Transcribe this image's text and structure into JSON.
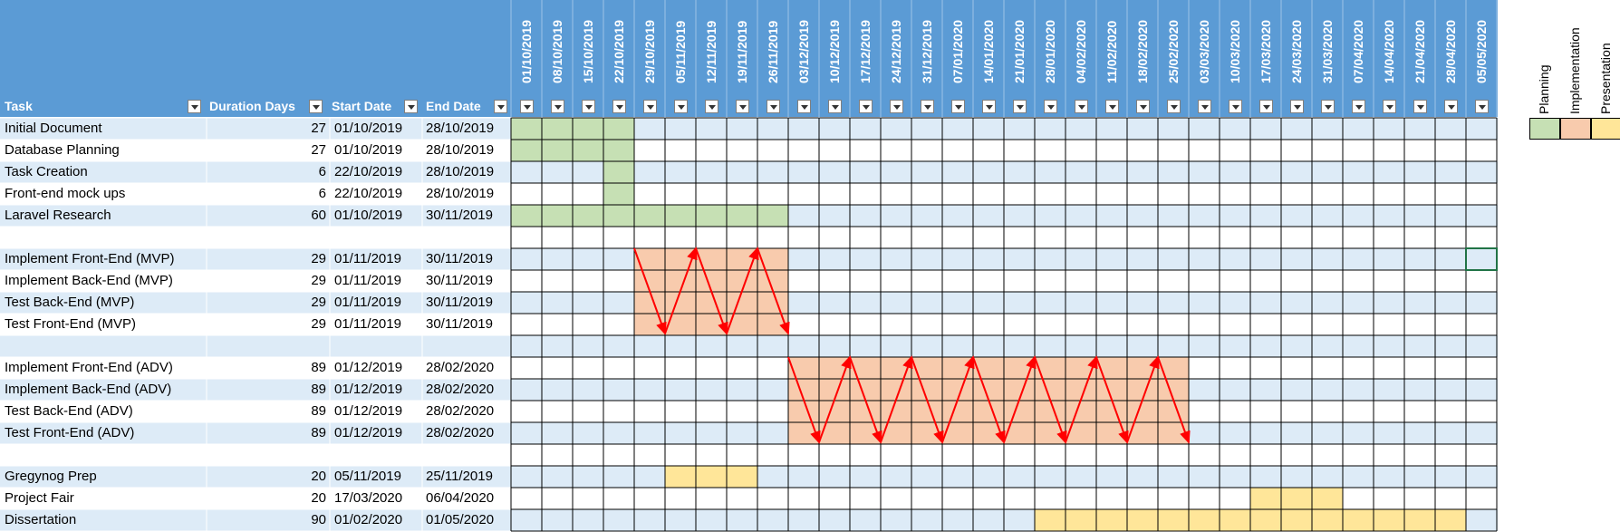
{
  "columns": {
    "task": "Task",
    "duration": "Duration Days",
    "start": "Start Date",
    "end": "End Date"
  },
  "weeks": [
    "01/10/2019",
    "08/10/2019",
    "15/10/2019",
    "22/10/2019",
    "29/10/2019",
    "05/11/2019",
    "12/11/2019",
    "19/11/2019",
    "26/11/2019",
    "03/12/2019",
    "10/12/2019",
    "17/12/2019",
    "24/12/2019",
    "31/12/2019",
    "07/01/2020",
    "14/01/2020",
    "21/01/2020",
    "28/01/2020",
    "04/02/2020",
    "11/02/2020",
    "18/02/2020",
    "25/02/2020",
    "03/03/2020",
    "10/03/2020",
    "17/03/2020",
    "24/03/2020",
    "31/03/2020",
    "07/04/2020",
    "14/04/2020",
    "21/04/2020",
    "28/04/2020",
    "05/05/2020"
  ],
  "rows": [
    {
      "task": "Initial Document",
      "duration": "27",
      "start": "01/10/2019",
      "end": "28/10/2019",
      "category": "planning",
      "bar": [
        0,
        4
      ]
    },
    {
      "task": "Database Planning",
      "duration": "27",
      "start": "01/10/2019",
      "end": "28/10/2019",
      "category": "planning",
      "bar": [
        0,
        4
      ]
    },
    {
      "task": "Task Creation",
      "duration": "6",
      "start": "22/10/2019",
      "end": "28/10/2019",
      "category": "planning",
      "bar": [
        3,
        4
      ]
    },
    {
      "task": "Front-end mock ups",
      "duration": "6",
      "start": "22/10/2019",
      "end": "28/10/2019",
      "category": "planning",
      "bar": [
        3,
        4
      ]
    },
    {
      "task": "Laravel Research",
      "duration": "60",
      "start": "01/10/2019",
      "end": "30/11/2019",
      "category": "planning",
      "bar": [
        0,
        9
      ]
    },
    {
      "task": "",
      "duration": "",
      "start": "",
      "end": "",
      "category": "",
      "bar": null
    },
    {
      "task": "Implement Front-End (MVP)",
      "duration": "29",
      "start": "01/11/2019",
      "end": "30/11/2019",
      "category": "implementation",
      "bar": [
        4,
        9
      ]
    },
    {
      "task": "Implement Back-End (MVP)",
      "duration": "29",
      "start": "01/11/2019",
      "end": "30/11/2019",
      "category": "implementation",
      "bar": [
        4,
        9
      ]
    },
    {
      "task": "Test Back-End (MVP)",
      "duration": "29",
      "start": "01/11/2019",
      "end": "30/11/2019",
      "category": "implementation",
      "bar": [
        4,
        9
      ]
    },
    {
      "task": "Test Front-End (MVP)",
      "duration": "29",
      "start": "01/11/2019",
      "end": "30/11/2019",
      "category": "implementation",
      "bar": [
        4,
        9
      ]
    },
    {
      "task": "",
      "duration": "",
      "start": "",
      "end": "",
      "category": "",
      "bar": null
    },
    {
      "task": "Implement Front-End (ADV)",
      "duration": "89",
      "start": "01/12/2019",
      "end": "28/02/2020",
      "category": "implementation",
      "bar": [
        9,
        22
      ]
    },
    {
      "task": "Implement Back-End (ADV)",
      "duration": "89",
      "start": "01/12/2019",
      "end": "28/02/2020",
      "category": "implementation",
      "bar": [
        9,
        22
      ]
    },
    {
      "task": "Test Back-End (ADV)",
      "duration": "89",
      "start": "01/12/2019",
      "end": "28/02/2020",
      "category": "implementation",
      "bar": [
        9,
        22
      ]
    },
    {
      "task": "Test Front-End (ADV)",
      "duration": "89",
      "start": "01/12/2019",
      "end": "28/02/2020",
      "category": "implementation",
      "bar": [
        9,
        22
      ]
    },
    {
      "task": "",
      "duration": "",
      "start": "",
      "end": "",
      "category": "",
      "bar": null
    },
    {
      "task": "Gregynog Prep",
      "duration": "20",
      "start": "05/11/2019",
      "end": "25/11/2019",
      "category": "presentation",
      "bar": [
        5,
        8
      ]
    },
    {
      "task": "Project Fair",
      "duration": "20",
      "start": "17/03/2020",
      "end": "06/04/2020",
      "category": "presentation",
      "bar": [
        24,
        27
      ]
    },
    {
      "task": "Dissertation",
      "duration": "90",
      "start": "01/02/2020",
      "end": "01/05/2020",
      "category": "presentation",
      "bar": [
        17,
        31
      ]
    }
  ],
  "zigzags": [
    {
      "rows": [
        6,
        9
      ],
      "cols": [
        4,
        9
      ]
    },
    {
      "rows": [
        11,
        14
      ],
      "cols": [
        9,
        22
      ]
    }
  ],
  "legend": [
    {
      "label": "Planning",
      "key": "planning"
    },
    {
      "label": "Implementation",
      "key": "implementation"
    },
    {
      "label": "Presentation",
      "key": "presentation"
    }
  ],
  "colors": {
    "planning": "#c6e0b4",
    "implementation": "#f8cbad",
    "presentation": "#ffe699",
    "header": "#5b9bd5",
    "band": "#ddebf7",
    "arrow": "#ff0000"
  }
}
